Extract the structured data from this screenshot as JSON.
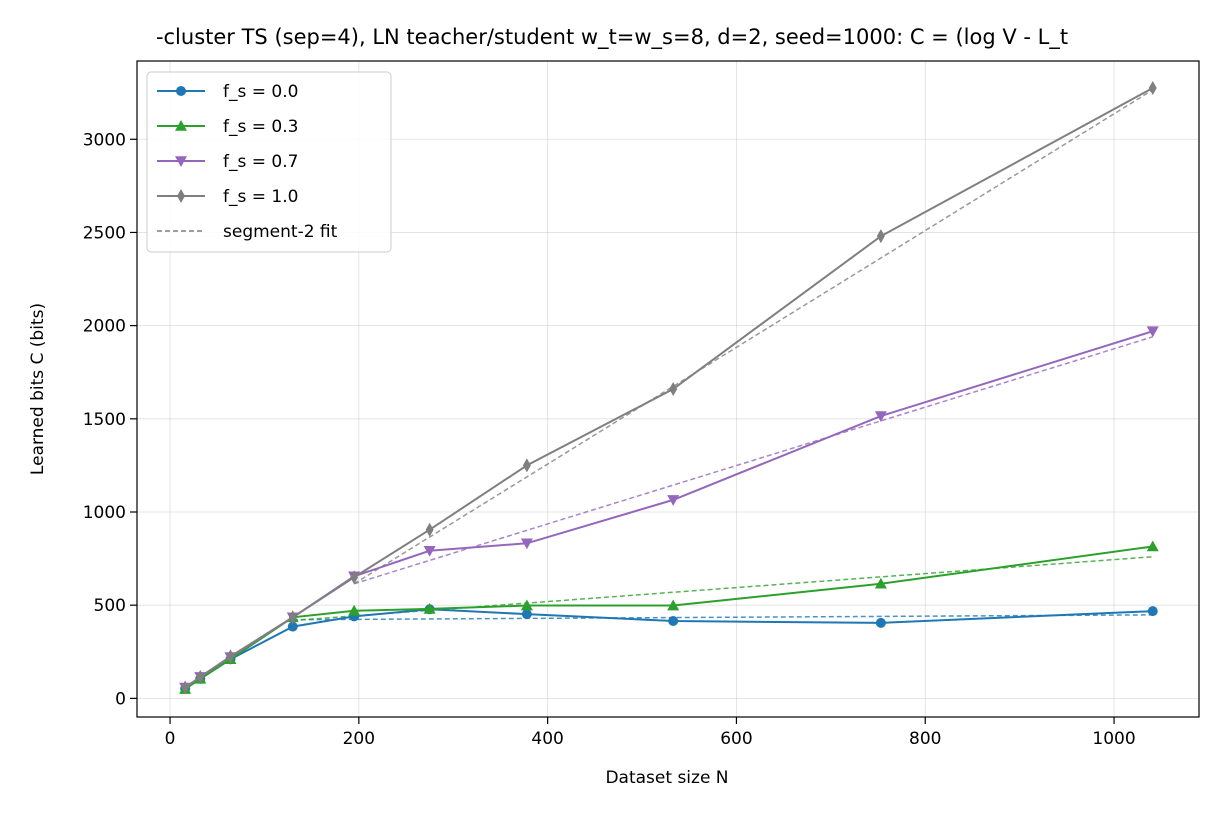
{
  "chart_data": {
    "type": "line",
    "title": "-cluster TS (sep=4), LN teacher/student w_t=w_s=8, d=2, seed=1000: C = (log V - L_t",
    "xlabel": "Dataset size N",
    "ylabel": "Learned bits C (bits)",
    "xlim": [
      -35,
      1090
    ],
    "ylim": [
      -100,
      3420
    ],
    "xticks": [
      0,
      200,
      400,
      600,
      800,
      1000
    ],
    "yticks": [
      0,
      500,
      1000,
      1500,
      2000,
      2500,
      3000
    ],
    "grid": true,
    "legend_position": "upper-left",
    "series": [
      {
        "name": "f_s = 0.0",
        "color": "#1f77b4",
        "marker": "circle",
        "x": [
          16,
          32,
          64,
          130,
          195,
          275,
          378,
          533,
          753,
          1041
        ],
        "y": [
          52,
          105,
          210,
          385,
          440,
          478,
          452,
          415,
          405,
          468
        ]
      },
      {
        "name": "f_s = 0.3",
        "color": "#2ca02c",
        "marker": "triangle-up",
        "x": [
          16,
          32,
          64,
          130,
          195,
          275,
          378,
          533,
          753,
          1041
        ],
        "y": [
          50,
          105,
          210,
          435,
          470,
          480,
          498,
          498,
          615,
          815
        ]
      },
      {
        "name": "f_s = 0.7",
        "color": "#9467bd",
        "marker": "triangle-down",
        "x": [
          16,
          32,
          64,
          130,
          195,
          275,
          378,
          533,
          753,
          1041
        ],
        "y": [
          58,
          115,
          222,
          435,
          655,
          792,
          832,
          1065,
          1515,
          1970
        ]
      },
      {
        "name": "f_s = 1.0",
        "color": "#7f7f7f",
        "marker": "thin-diamond",
        "x": [
          16,
          32,
          64,
          130,
          195,
          275,
          378,
          533,
          753,
          1041
        ],
        "y": [
          58,
          115,
          225,
          435,
          650,
          905,
          1250,
          1660,
          2480,
          3275
        ]
      }
    ],
    "fits": [
      {
        "series": "f_s = 0.0",
        "color": "#1f77b4",
        "x": [
          130,
          1041
        ],
        "y": [
          422,
          448
        ]
      },
      {
        "series": "f_s = 0.3",
        "color": "#2ca02c",
        "x": [
          130,
          1041
        ],
        "y": [
          418,
          760
        ]
      },
      {
        "series": "f_s = 0.7",
        "color": "#9467bd",
        "x": [
          195,
          1041
        ],
        "y": [
          615,
          1940
        ]
      },
      {
        "series": "f_s = 1.0",
        "color": "#7f7f7f",
        "x": [
          195,
          1041
        ],
        "y": [
          615,
          3265
        ]
      }
    ],
    "legend": [
      {
        "label": "f_s = 0.0",
        "color": "#1f77b4",
        "marker": "circle",
        "style": "solid"
      },
      {
        "label": "f_s = 0.3",
        "color": "#2ca02c",
        "marker": "triangle-up",
        "style": "solid"
      },
      {
        "label": "f_s = 0.7",
        "color": "#9467bd",
        "marker": "triangle-down",
        "style": "solid"
      },
      {
        "label": "f_s = 1.0",
        "color": "#7f7f7f",
        "marker": "thin-diamond",
        "style": "solid"
      },
      {
        "label": "segment-2 fit",
        "color": "#7f7f7f",
        "marker": "none",
        "style": "dashed"
      }
    ]
  }
}
